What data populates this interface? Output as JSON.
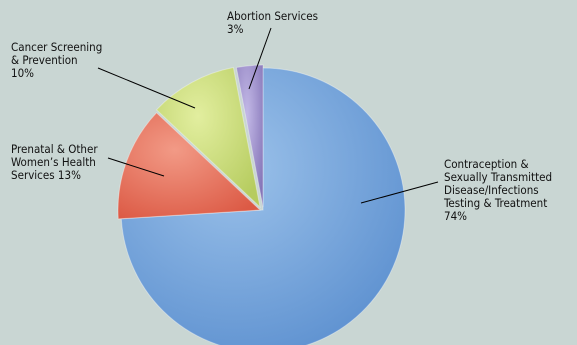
{
  "chart_data": {
    "type": "pie",
    "slices": [
      {
        "label_lines": [
          "Contraception &",
          "Sexually Transmitted",
          "Disease/Infections",
          "Testing & Treatment",
          "74%"
        ],
        "value": 74,
        "color": "#6c9fd6"
      },
      {
        "label_lines": [
          "Prenatal & Other",
          "Women’s Health",
          "Services  13%"
        ],
        "value": 13,
        "color": "#e4715b"
      },
      {
        "label_lines": [
          "Cancer Screening",
          "& Prevention",
          "10%"
        ],
        "value": 10,
        "color": "#c8d97a"
      },
      {
        "label_lines": [
          "Abortion Services",
          "3%"
        ],
        "value": 3,
        "color": "#9b8cc7"
      }
    ]
  }
}
